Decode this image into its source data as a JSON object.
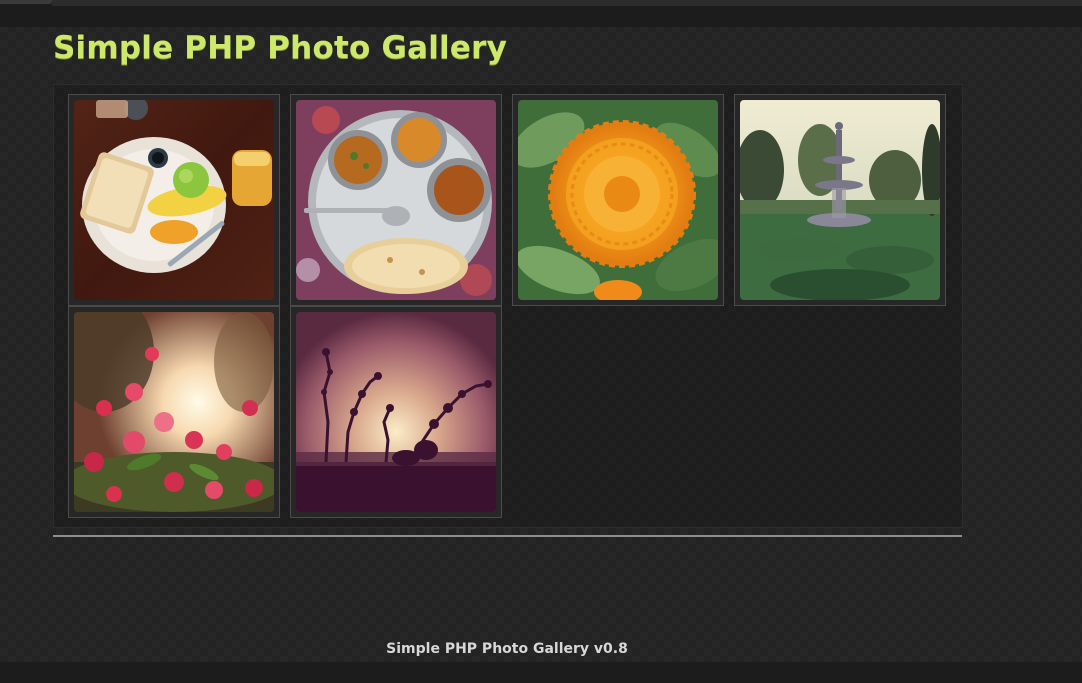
{
  "header": {
    "title": "Simple PHP Photo Gallery"
  },
  "gallery": {
    "photos": [
      {
        "subject": "breakfast plate with toast, banana and juice"
      },
      {
        "subject": "thali with curries and chapati"
      },
      {
        "subject": "orange marigold flower"
      },
      {
        "subject": "garden fountain"
      },
      {
        "subject": "pink flowers against sunset"
      },
      {
        "subject": "silhouetted plants at sunset"
      }
    ]
  },
  "footer": {
    "text": "Simple PHP Photo Gallery v0.8"
  },
  "colors": {
    "accent": "#cde86a",
    "background": "#222322",
    "thumb_border": "#4a4b4a"
  }
}
